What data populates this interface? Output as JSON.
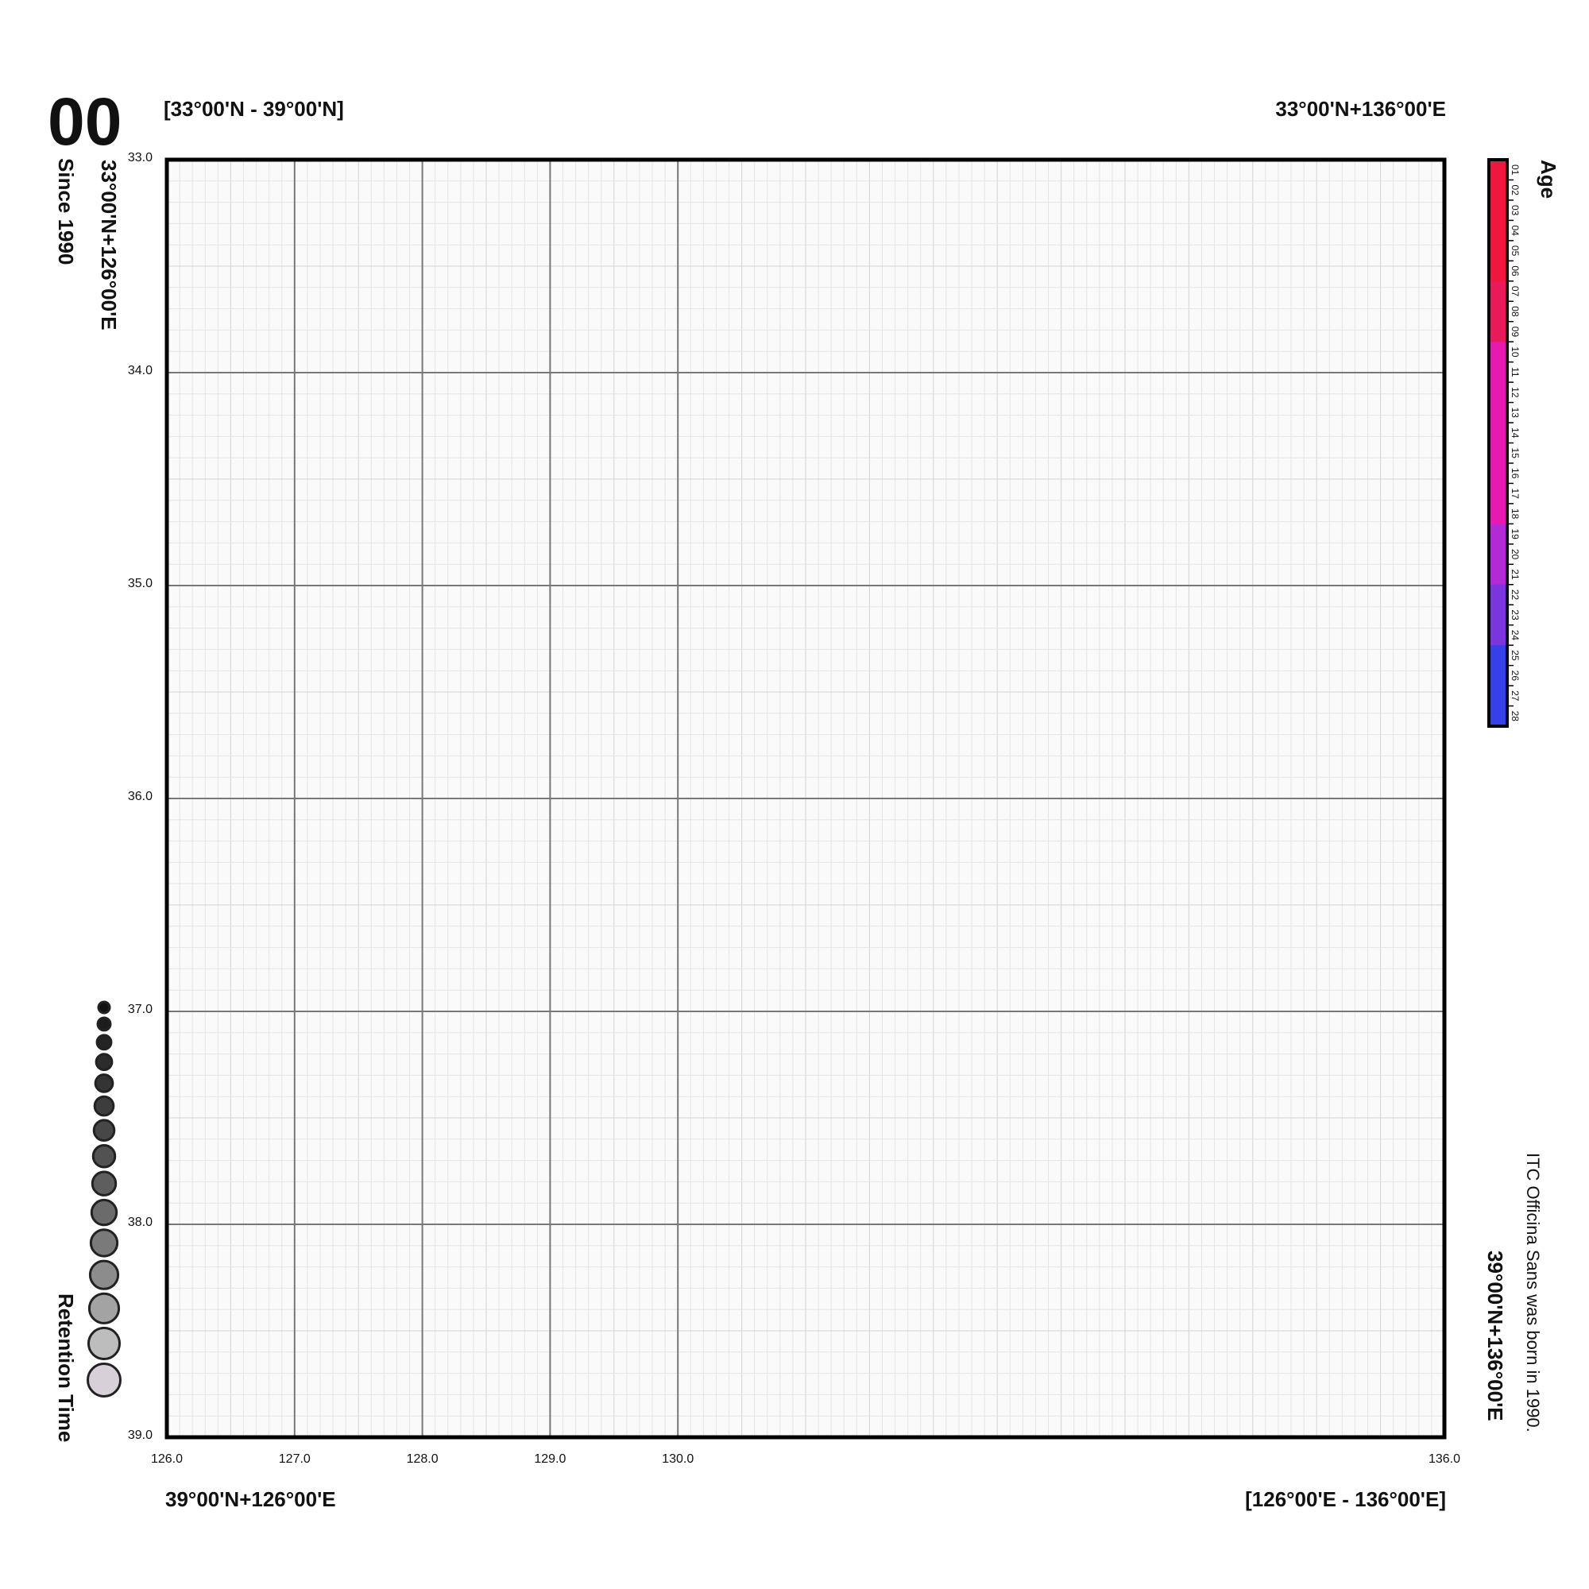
{
  "chart_data": {
    "type": "graticule",
    "panel_label": "00",
    "lat_range_label": "[33°00'N - 39°00'N]",
    "lon_range_label": "[126°00'E - 136°00'E]",
    "corner_labels": {
      "top_left": "33°00'N+126°00'E",
      "top_right": "33°00'N+136°00'E",
      "bottom_left": "39°00'N+126°00'E",
      "bottom_right": "39°00'N+136°00'E"
    },
    "subtitle": "Since 1990",
    "note": "ITC Officina Sans was born in 1990.",
    "xlim": [
      126,
      136
    ],
    "ylim": [
      33,
      39
    ],
    "y_inverted": true,
    "xticks": [
      {
        "value": 126,
        "label": "126.0"
      },
      {
        "value": 127,
        "label": "127.0"
      },
      {
        "value": 128,
        "label": "128.0"
      },
      {
        "value": 129,
        "label": "129.0"
      },
      {
        "value": 130,
        "label": "130.0"
      },
      {
        "value": 136,
        "label": "136.0"
      }
    ],
    "yticks": [
      {
        "value": 33,
        "label": "33.0"
      },
      {
        "value": 34,
        "label": "34.0"
      },
      {
        "value": 35,
        "label": "35.0"
      },
      {
        "value": 36,
        "label": "36.0"
      },
      {
        "value": 37,
        "label": "37.0"
      },
      {
        "value": 38,
        "label": "38.0"
      },
      {
        "value": 39,
        "label": "39.0"
      }
    ],
    "grid": true,
    "minor_grid_divisions": 10,
    "colorbar": {
      "title": "Age",
      "categories": [
        "01",
        "02",
        "03",
        "04",
        "05",
        "06",
        "07",
        "08",
        "09",
        "10",
        "11",
        "12",
        "13",
        "14",
        "15",
        "16",
        "17",
        "18",
        "19",
        "20",
        "21",
        "22",
        "23",
        "24",
        "25",
        "26",
        "27",
        "28"
      ],
      "colors": [
        "#f0163c",
        "#f0163c",
        "#f0163c",
        "#f0163c",
        "#f0163c",
        "#f0163c",
        "#e81a5a",
        "#e81a5a",
        "#e81a5a",
        "#e61ab0",
        "#e61ab0",
        "#e61ab0",
        "#e61ab0",
        "#e61ab0",
        "#e61ab0",
        "#e61ab0",
        "#e61ab0",
        "#e61ab0",
        "#b22ad6",
        "#b22ad6",
        "#b22ad6",
        "#7a35dc",
        "#7a35dc",
        "#7a35dc",
        "#3540e8",
        "#3540e8",
        "#3540e8",
        "#3540e8"
      ]
    },
    "size_legend": {
      "title": "Retention Time",
      "colors": [
        "#111111",
        "#1c1c1c",
        "#242424",
        "#2c2c2c",
        "#343434",
        "#3d3d3d",
        "#474747",
        "#525252",
        "#5e5e5e",
        "#6b6b6b",
        "#7a7a7a",
        "#8c8c8c",
        "#a3a3a3",
        "#bdbdbd",
        "#d8d0d8"
      ]
    }
  }
}
